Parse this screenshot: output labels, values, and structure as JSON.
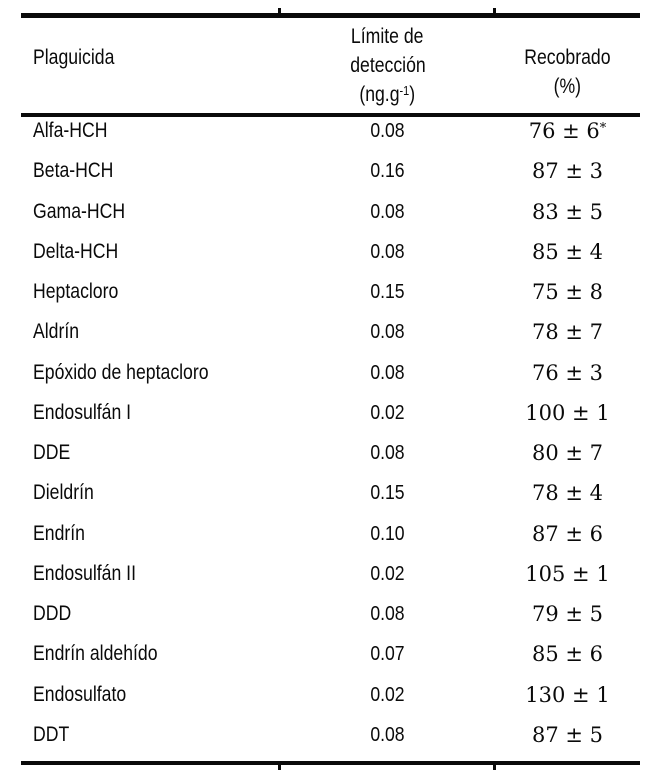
{
  "page": {
    "background_color": "#ffffff",
    "text_color": "#0a0a0a",
    "rule_color": "#0a0a0a"
  },
  "table": {
    "header": {
      "pesticide": "Plaguicida",
      "lod_line1": "Límite de",
      "lod_line2": "detección",
      "lod_unit_pre": "(ng.g",
      "lod_unit_sup": "-1",
      "lod_unit_post": ")",
      "rec_line1": "Recobrado",
      "rec_line2": "(%)"
    },
    "rows": [
      {
        "name": "Alfa-HCH",
        "lod": "0.08",
        "rec": "76 ± 6",
        "star": "*"
      },
      {
        "name": "Beta-HCH",
        "lod": "0.16",
        "rec": "87 ± 3",
        "star": ""
      },
      {
        "name": "Gama-HCH",
        "lod": "0.08",
        "rec": "83 ± 5",
        "star": ""
      },
      {
        "name": "Delta-HCH",
        "lod": "0.08",
        "rec": "85 ± 4",
        "star": ""
      },
      {
        "name": "Heptacloro",
        "lod": "0.15",
        "rec": "75 ± 8",
        "star": ""
      },
      {
        "name": "Aldrín",
        "lod": "0.08",
        "rec": "78 ± 7",
        "star": ""
      },
      {
        "name": "Epóxido de heptacloro",
        "lod": "0.08",
        "rec": "76 ± 3",
        "star": ""
      },
      {
        "name": "Endosulfán I",
        "lod": "0.02",
        "rec": "100 ± 1",
        "star": ""
      },
      {
        "name": "DDE",
        "lod": "0.08",
        "rec": "80 ± 7",
        "star": ""
      },
      {
        "name": "Dieldrín",
        "lod": "0.15",
        "rec": "78 ± 4",
        "star": ""
      },
      {
        "name": "Endrín",
        "lod": "0.10",
        "rec": "87 ± 6",
        "star": ""
      },
      {
        "name": "Endosulfán II",
        "lod": "0.02",
        "rec": "105 ± 1",
        "star": ""
      },
      {
        "name": "DDD",
        "lod": "0.08",
        "rec": "79 ± 5",
        "star": ""
      },
      {
        "name": "Endrín aldehído",
        "lod": "0.07",
        "rec": "85 ± 6",
        "star": ""
      },
      {
        "name": "Endosulfato",
        "lod": "0.02",
        "rec": "130 ± 1",
        "star": ""
      },
      {
        "name": "DDT",
        "lod": "0.08",
        "rec": "87 ± 5",
        "star": ""
      }
    ]
  },
  "chart_data": {
    "type": "table",
    "columns": [
      "Plaguicida",
      "Límite de detección (ng.g-1)",
      "Recobrado (%)"
    ],
    "rows": [
      [
        "Alfa-HCH",
        0.08,
        "76 ± 6*"
      ],
      [
        "Beta-HCH",
        0.16,
        "87 ± 3"
      ],
      [
        "Gama-HCH",
        0.08,
        "83 ± 5"
      ],
      [
        "Delta-HCH",
        0.08,
        "85 ± 4"
      ],
      [
        "Heptacloro",
        0.15,
        "75 ± 8"
      ],
      [
        "Aldrín",
        0.08,
        "78 ± 7"
      ],
      [
        "Epóxido de heptacloro",
        0.08,
        "76 ± 3"
      ],
      [
        "Endosulfán I",
        0.02,
        "100 ± 1"
      ],
      [
        "DDE",
        0.08,
        "80 ± 7"
      ],
      [
        "Dieldrín",
        0.15,
        "78 ± 4"
      ],
      [
        "Endrín",
        0.1,
        "87 ± 6"
      ],
      [
        "Endosulfán II",
        0.02,
        "105 ± 1"
      ],
      [
        "DDD",
        0.08,
        "79 ± 5"
      ],
      [
        "Endrín aldehído",
        0.07,
        "85 ± 6"
      ],
      [
        "Endosulfato",
        0.02,
        "130 ± 1"
      ],
      [
        "DDT",
        0.08,
        "87 ± 5"
      ]
    ]
  }
}
